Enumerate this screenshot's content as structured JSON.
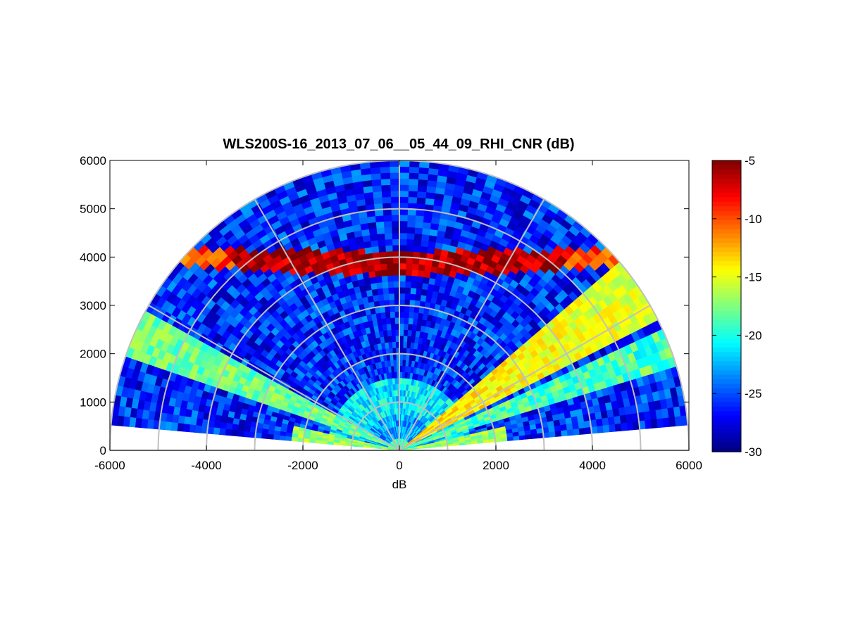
{
  "chart_data": {
    "type": "heatmap",
    "subtype": "polar-sector (RHI scan)",
    "title": "WLS200S-16_2013_07_06__05_44_09_RHI_CNR (dB)",
    "xlabel": "dB",
    "ylabel": "",
    "xlim": [
      -6000,
      6000
    ],
    "ylim": [
      0,
      6000
    ],
    "x_ticks": [
      "-6000",
      "-4000",
      "-2000",
      "0",
      "2000",
      "4000",
      "6000"
    ],
    "y_ticks": [
      "0",
      "1000",
      "2000",
      "3000",
      "4000",
      "5000",
      "6000"
    ],
    "max_range": 6000,
    "range_rings": [
      1000,
      2000,
      3000,
      4000,
      5000,
      6000
    ],
    "spokes_deg": [
      0,
      30,
      60,
      90,
      120,
      150,
      180
    ],
    "scan_elevation_deg": [
      5,
      175
    ],
    "colormap": "jet",
    "colorbar": {
      "min": -30,
      "max": -5,
      "ticks": [
        "-5",
        "-10",
        "-15",
        "-20",
        "-25",
        "-30"
      ],
      "tick_values": [
        -5,
        -10,
        -15,
        -20,
        -25,
        -30
      ]
    },
    "features": [
      {
        "name": "background",
        "cnr_db": -26
      },
      {
        "name": "near-range band",
        "range": [
          700,
          1500
        ],
        "cnr_db": -21
      },
      {
        "name": "cloud layer",
        "altitude": [
          3700,
          4200
        ],
        "cnr_db": -6
      },
      {
        "name": "left aerosol wedge",
        "elevation_deg": [
          152,
          162
        ],
        "cnr_db": -18
      },
      {
        "name": "right bright wedge",
        "elevation_deg": [
          27,
          40
        ],
        "cnr_db": -13
      },
      {
        "name": "right narrow wedge",
        "elevation_deg": [
          17,
          24
        ],
        "cnr_db": -19
      }
    ],
    "grid": true,
    "grid_color": "#c0c0c0"
  }
}
